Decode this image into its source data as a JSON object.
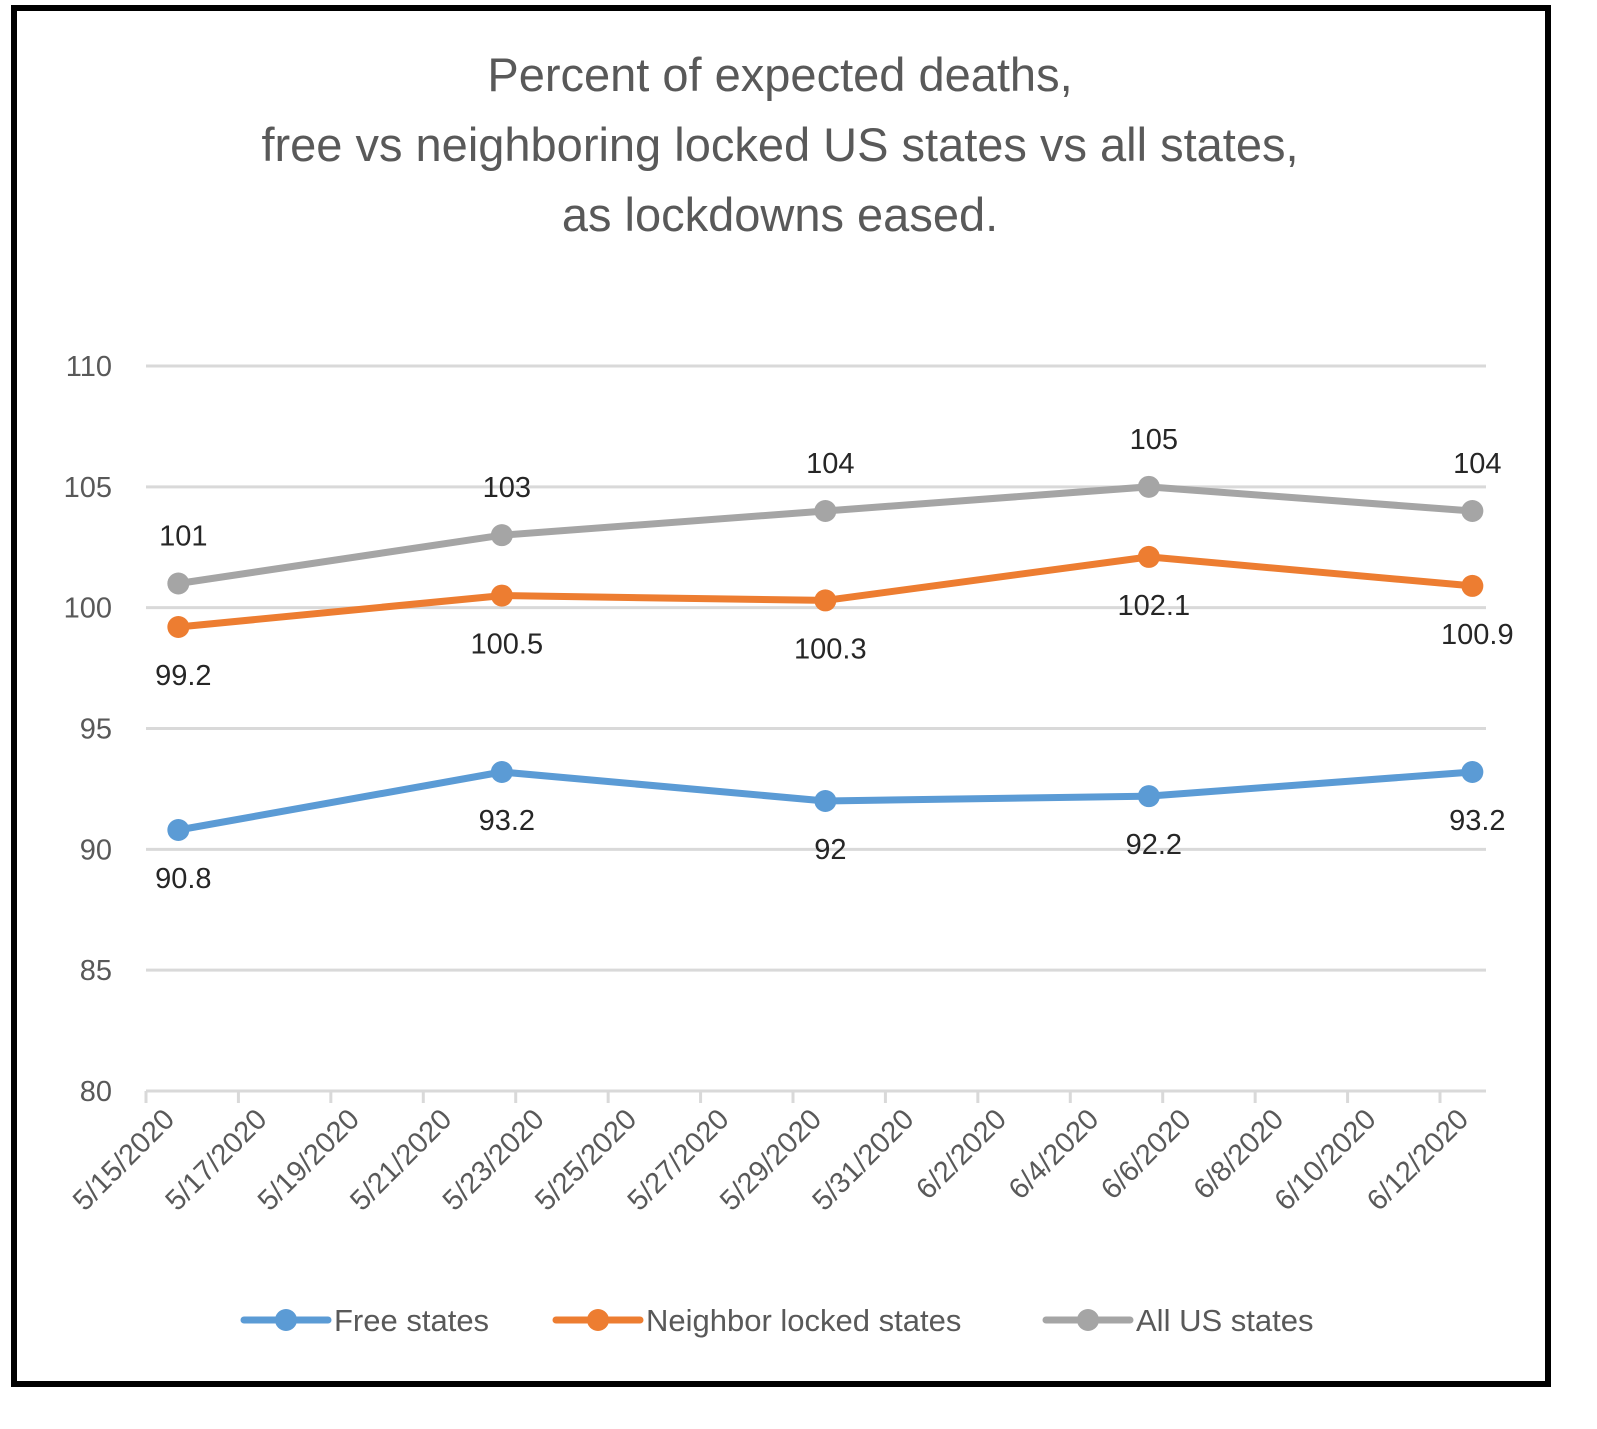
{
  "chart_data": {
    "type": "line",
    "title_lines": [
      "Percent of expected deaths,",
      "free vs neighboring locked US states vs all states,",
      "as lockdowns eased."
    ],
    "xlabel": "",
    "ylabel": "",
    "ylim": [
      80,
      110
    ],
    "yticks": [
      80,
      85,
      90,
      95,
      100,
      105,
      110
    ],
    "x_tick_labels": [
      "5/15/2020",
      "5/17/2020",
      "5/19/2020",
      "5/21/2020",
      "5/23/2020",
      "5/25/2020",
      "5/27/2020",
      "5/29/2020",
      "5/31/2020",
      "6/2/2020",
      "6/4/2020",
      "6/6/2020",
      "6/8/2020",
      "6/10/2020",
      "6/12/2020"
    ],
    "x": [
      "5/15/2020",
      "5/22/2020",
      "5/29/2020",
      "6/5/2020",
      "6/12/2020"
    ],
    "grid": true,
    "legend_position": "bottom",
    "series": [
      {
        "name": "Free states",
        "color": "#5b9bd5",
        "values": [
          90.8,
          93.2,
          92,
          92.2,
          93.2
        ],
        "labels": [
          "90.8",
          "93.2",
          "92",
          "92.2",
          "93.2"
        ],
        "label_position": "below"
      },
      {
        "name": "Neighbor locked states",
        "color": "#ed7d31",
        "values": [
          99.2,
          100.5,
          100.3,
          102.1,
          100.9
        ],
        "labels": [
          "99.2",
          "100.5",
          "100.3",
          "102.1",
          "100.9"
        ],
        "label_position": "below"
      },
      {
        "name": "All US states",
        "color": "#a5a5a5",
        "values": [
          101,
          103,
          104,
          105,
          104
        ],
        "labels": [
          "101",
          "103",
          "104",
          "105",
          "104"
        ],
        "label_position": "above"
      }
    ]
  }
}
